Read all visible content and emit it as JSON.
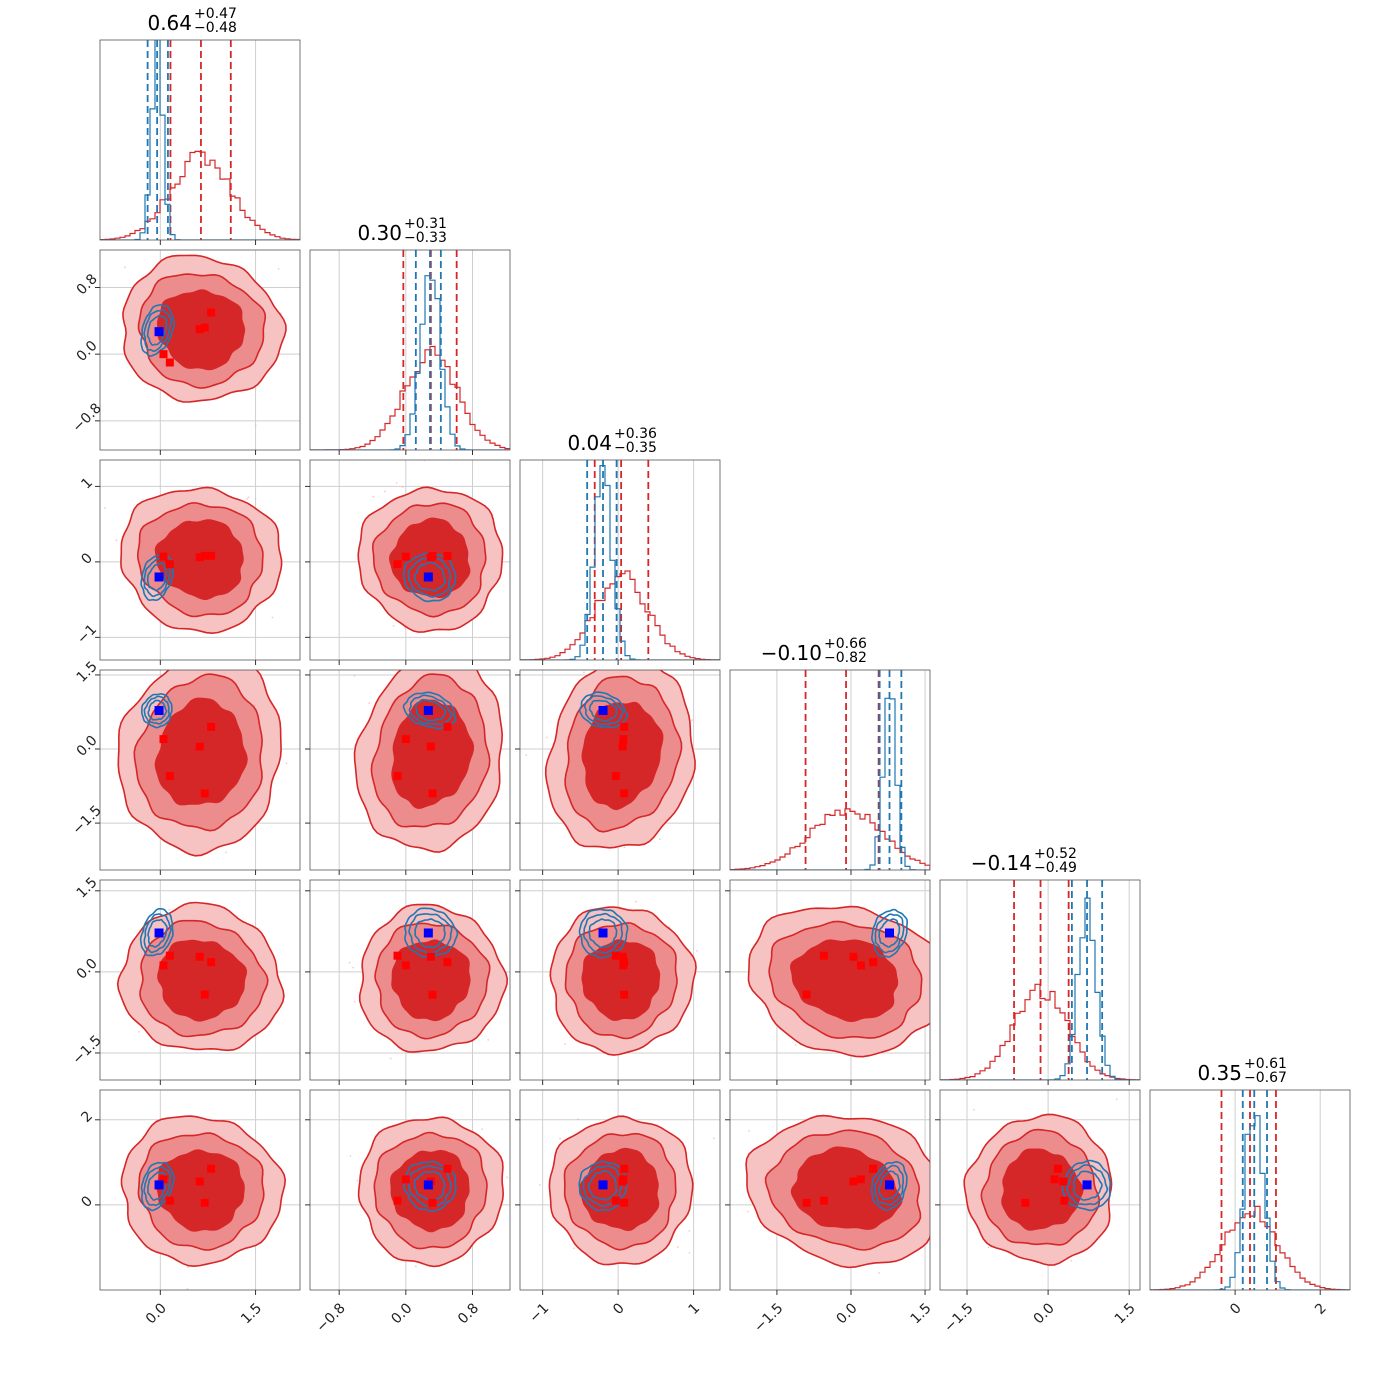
{
  "chart_data": {
    "type": "corner",
    "n_params": 6,
    "grid": true,
    "colors": {
      "posterior_red": "#d62728",
      "posterior_blue": "#1f77b4",
      "marker_blue": "#0000ff",
      "marker_red": "#ff0000"
    },
    "titles": [
      {
        "value": "0.64",
        "plus": "+0.47",
        "minus": "−0.48"
      },
      {
        "value": "0.30",
        "plus": "+0.31",
        "minus": "−0.33"
      },
      {
        "value": "0.04",
        "plus": "+0.36",
        "minus": "−0.35"
      },
      {
        "value": "−0.10",
        "plus": "+0.66",
        "minus": "−0.82"
      },
      {
        "value": "−0.14",
        "plus": "+0.52",
        "minus": "−0.49"
      },
      {
        "value": "0.35",
        "plus": "+0.61",
        "minus": "−0.67"
      }
    ],
    "params": [
      {
        "range": [
          -0.95,
          2.2
        ],
        "ticks": [
          0.0,
          1.5
        ],
        "tick_labels": [
          "0.0",
          "1.5"
        ],
        "ylabel_ticks": [],
        "ylabel_tick_labels": [],
        "red": {
          "mean": 0.64,
          "sd": 0.47,
          "q": [
            0.16,
            0.64,
            1.11
          ]
        },
        "blue": {
          "mean": -0.05,
          "sd": 0.09,
          "q": [
            -0.2,
            -0.05,
            0.12
          ]
        }
      },
      {
        "range": [
          -1.15,
          1.25
        ],
        "ticks": [
          -0.8,
          0.0,
          0.8
        ],
        "tick_labels": [
          "−0.8",
          "0.0",
          "0.8"
        ],
        "ylabel_ticks": [
          -0.8,
          0.0,
          0.8
        ],
        "ylabel_tick_labels": [
          "−0.8",
          "0.0",
          "0.8"
        ],
        "red": {
          "mean": 0.3,
          "sd": 0.32,
          "q": [
            -0.03,
            0.3,
            0.61
          ]
        },
        "blue": {
          "mean": 0.29,
          "sd": 0.12,
          "q": [
            0.12,
            0.29,
            0.42
          ]
        }
      },
      {
        "range": [
          -1.3,
          1.35
        ],
        "ticks": [
          -1,
          0,
          1
        ],
        "tick_labels": [
          "−1",
          "0",
          "1"
        ],
        "ylabel_ticks": [
          -1,
          0,
          1
        ],
        "ylabel_tick_labels": [
          "−1",
          "0",
          "1"
        ],
        "red": {
          "mean": 0.04,
          "sd": 0.35,
          "q": [
            -0.31,
            0.04,
            0.4
          ]
        },
        "blue": {
          "mean": -0.2,
          "sd": 0.12,
          "q": [
            -0.41,
            -0.2,
            -0.02
          ]
        }
      },
      {
        "range": [
          -2.45,
          1.6
        ],
        "ticks": [
          -1.5,
          0.0,
          1.5
        ],
        "tick_labels": [
          "−1.5",
          "0.0",
          "1.5"
        ],
        "ylabel_ticks": [
          -1.5,
          0.0,
          1.5
        ],
        "ylabel_tick_labels": [
          "−1.5",
          "0.0",
          "1.5"
        ],
        "red": {
          "mean": -0.1,
          "sd": 0.74,
          "q": [
            -0.92,
            -0.1,
            0.56
          ]
        },
        "blue": {
          "mean": 0.78,
          "sd": 0.13,
          "q": [
            0.58,
            0.78,
            1.02
          ]
        }
      },
      {
        "range": [
          -2.0,
          1.7
        ],
        "ticks": [
          -1.5,
          0.0,
          1.5
        ],
        "tick_labels": [
          "−1.5",
          "0.0",
          "1.5"
        ],
        "ylabel_ticks": [
          -1.5,
          0.0,
          1.5
        ],
        "ylabel_tick_labels": [
          "−1.5",
          "0.0",
          "1.5"
        ],
        "red": {
          "mean": -0.14,
          "sd": 0.5,
          "q": [
            -0.63,
            -0.14,
            0.38
          ]
        },
        "blue": {
          "mean": 0.72,
          "sd": 0.17,
          "q": [
            0.44,
            0.72,
            1.0
          ]
        }
      },
      {
        "range": [
          -2.0,
          2.7
        ],
        "ticks": [
          0,
          2
        ],
        "tick_labels": [
          "0",
          "2"
        ],
        "ylabel_ticks": [
          0,
          2
        ],
        "ylabel_tick_labels": [
          "0",
          "2"
        ],
        "red": {
          "mean": 0.35,
          "sd": 0.64,
          "q": [
            -0.32,
            0.35,
            0.96
          ]
        },
        "blue": {
          "mean": 0.45,
          "sd": 0.22,
          "q": [
            0.18,
            0.45,
            0.75
          ]
        }
      }
    ],
    "blue_marker": [
      -0.02,
      0.27,
      -0.2,
      0.78,
      0.72,
      0.47
    ],
    "red_markers": [
      [
        0.8,
        0.5,
        0.08,
        0.45,
        0.18,
        0.85
      ],
      [
        0.62,
        0.3,
        0.06,
        0.05,
        0.28,
        0.55
      ],
      [
        0.15,
        -0.1,
        -0.03,
        -0.55,
        0.3,
        0.1
      ],
      [
        0.7,
        0.32,
        0.08,
        -0.9,
        -0.42,
        0.05
      ],
      [
        0.05,
        0.0,
        0.07,
        0.2,
        0.12,
        0.6
      ]
    ]
  }
}
